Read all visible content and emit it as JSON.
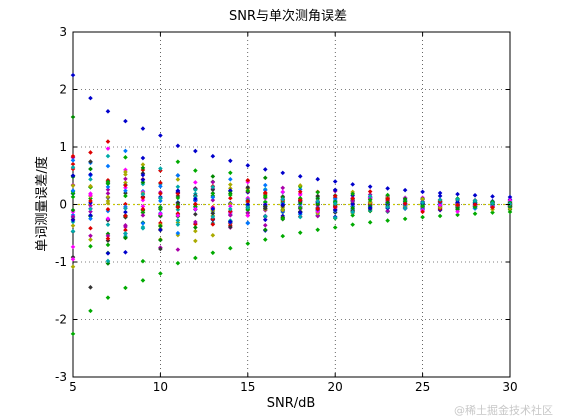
{
  "chart_data": {
    "type": "scatter",
    "title": "SNR与单次测角误差",
    "xlabel": "SNR/dB",
    "ylabel": "单词测量误差/度",
    "xlim": [
      5,
      30
    ],
    "ylim": [
      -3,
      3
    ],
    "xticks": [
      "5",
      "10",
      "15",
      "20",
      "25",
      "30"
    ],
    "yticks": [
      "-3",
      "-2",
      "-1",
      "0",
      "1",
      "2",
      "3"
    ],
    "grid": true,
    "x": [
      5,
      6,
      7,
      8,
      9,
      10,
      11,
      12,
      13,
      14,
      15,
      16,
      17,
      18,
      19,
      20,
      21,
      22,
      23,
      24,
      25,
      26,
      27,
      28,
      29,
      30
    ],
    "spread": [
      2.25,
      1.85,
      1.62,
      1.45,
      1.32,
      1.2,
      1.02,
      0.93,
      0.84,
      0.76,
      0.68,
      0.61,
      0.55,
      0.49,
      0.44,
      0.4,
      0.35,
      0.31,
      0.28,
      0.25,
      0.22,
      0.2,
      0.18,
      0.16,
      0.14,
      0.13
    ],
    "series_colors": [
      "#0000cc",
      "#00aa00",
      "#dd0000",
      "#00aaaa",
      "#aa00aa",
      "#aaaa00",
      "#333333",
      "#0077ff",
      "#ff00ff",
      "#008800"
    ],
    "points_per_x": 34
  },
  "watermark": "@稀土掘金技术社区"
}
